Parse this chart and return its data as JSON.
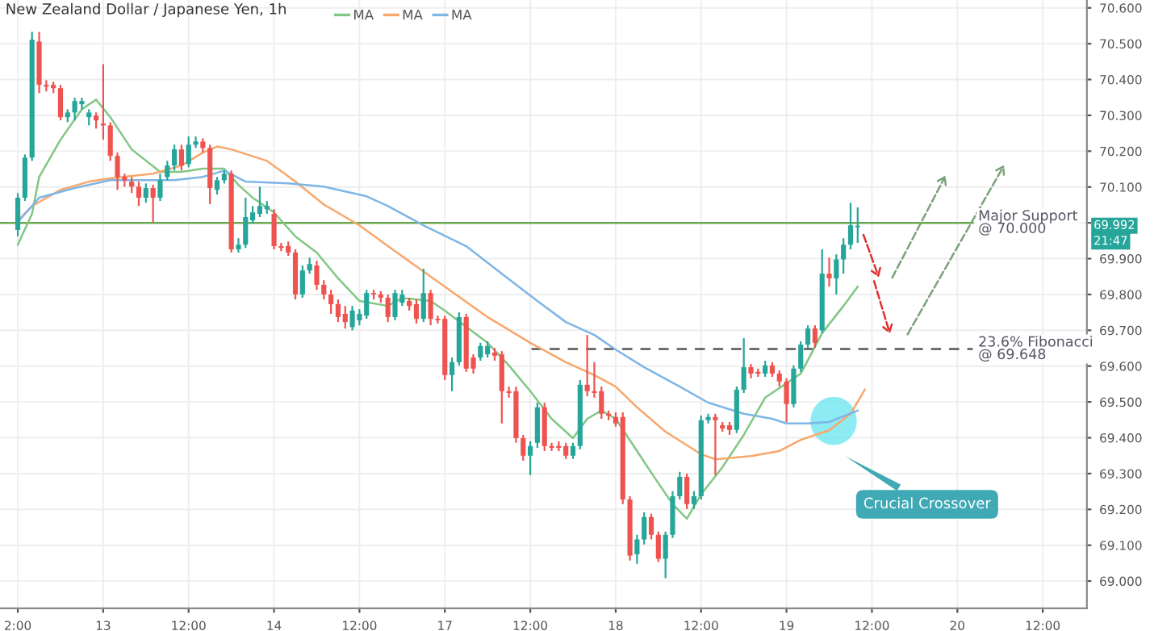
{
  "chart_data": {
    "type": "candlestick",
    "title": "New Zealand Dollar / Japanese Yen, 1h",
    "categories": [
      "2:00",
      null,
      null,
      null,
      null,
      null,
      null,
      null,
      null,
      null,
      null,
      null,
      "13",
      null,
      null,
      null,
      null,
      null,
      null,
      null,
      null,
      null,
      null,
      null,
      "12:00",
      null,
      null,
      null,
      null,
      null,
      null,
      null,
      null,
      null,
      null,
      null,
      "14",
      null,
      null,
      null,
      null,
      null,
      null,
      null,
      null,
      null,
      null,
      null,
      "12:00",
      null,
      null,
      null,
      null,
      null,
      null,
      null,
      null,
      null,
      null,
      null,
      "17",
      null,
      null,
      null,
      null,
      null,
      null,
      null,
      null,
      null,
      null,
      null,
      "12:00",
      null,
      null,
      null,
      null,
      null,
      null,
      null,
      null,
      null,
      null,
      null,
      "18",
      null,
      null,
      null,
      null,
      null,
      null,
      null,
      null,
      null,
      null,
      null,
      "12:00",
      null,
      null,
      null,
      null,
      null,
      null,
      null,
      null,
      null,
      null,
      null,
      "19",
      null,
      null,
      null,
      null,
      null,
      null,
      null,
      null,
      null,
      null,
      null,
      "12:00",
      null,
      null,
      null,
      null,
      null,
      null,
      null,
      null,
      null,
      null,
      null,
      "20",
      null,
      null,
      null,
      null,
      null,
      null,
      null,
      null,
      null,
      null,
      null,
      "12:00",
      null,
      null,
      null,
      null,
      null,
      null
    ],
    "ohlc": [
      [
        69.98,
        70.083,
        69.962,
        70.07
      ],
      [
        70.07,
        70.191,
        70.061,
        70.182
      ],
      [
        70.182,
        70.533,
        70.173,
        70.511
      ],
      [
        70.506,
        70.533,
        70.362,
        70.385
      ],
      [
        70.385,
        70.398,
        70.367,
        70.38
      ],
      [
        70.385,
        70.394,
        70.362,
        70.376
      ],
      [
        70.376,
        70.385,
        70.286,
        70.295
      ],
      [
        70.295,
        70.317,
        70.281,
        70.308
      ],
      [
        70.308,
        70.349,
        70.286,
        70.34
      ],
      [
        70.331,
        70.349,
        70.317,
        70.34
      ],
      [
        70.295,
        70.317,
        70.272,
        70.308
      ],
      [
        70.299,
        70.308,
        70.263,
        70.286
      ],
      [
        70.277,
        70.443,
        70.232,
        70.272
      ],
      [
        70.272,
        70.281,
        70.173,
        70.187
      ],
      [
        70.187,
        70.196,
        70.092,
        70.128
      ],
      [
        70.128,
        70.137,
        70.101,
        70.119
      ],
      [
        70.115,
        70.128,
        70.083,
        70.101
      ],
      [
        70.101,
        70.115,
        70.047,
        70.07
      ],
      [
        70.07,
        70.11,
        70.056,
        70.097
      ],
      [
        70.097,
        70.106,
        70.002,
        70.07
      ],
      [
        70.07,
        70.137,
        70.061,
        70.119
      ],
      [
        70.128,
        70.173,
        70.119,
        70.16
      ],
      [
        70.16,
        70.218,
        70.146,
        70.205
      ],
      [
        70.205,
        70.218,
        70.146,
        70.16
      ],
      [
        70.164,
        70.241,
        70.155,
        70.218
      ],
      [
        70.218,
        70.241,
        70.209,
        70.227
      ],
      [
        70.227,
        70.236,
        70.196,
        70.209
      ],
      [
        70.209,
        70.218,
        70.052,
        70.097
      ],
      [
        70.092,
        70.128,
        70.079,
        70.119
      ],
      [
        70.119,
        70.146,
        70.11,
        70.137
      ],
      [
        70.137,
        70.146,
        69.917,
        69.926
      ],
      [
        69.926,
        69.957,
        69.917,
        69.939
      ],
      [
        69.939,
        70.07,
        69.93,
        70.016
      ],
      [
        70.007,
        70.047,
        69.998,
        70.029
      ],
      [
        70.025,
        70.101,
        70.016,
        70.047
      ],
      [
        70.038,
        70.061,
        70.025,
        70.047
      ],
      [
        70.025,
        70.038,
        69.926,
        69.935
      ],
      [
        69.935,
        69.944,
        69.921,
        69.93
      ],
      [
        69.935,
        69.948,
        69.908,
        69.917
      ],
      [
        69.917,
        69.926,
        69.786,
        69.8
      ],
      [
        69.8,
        69.881,
        69.791,
        69.867
      ],
      [
        69.867,
        69.903,
        69.858,
        69.885
      ],
      [
        69.881,
        69.894,
        69.813,
        69.827
      ],
      [
        69.827,
        69.84,
        69.786,
        69.8
      ],
      [
        69.8,
        69.813,
        69.746,
        69.773
      ],
      [
        69.773,
        69.786,
        69.723,
        69.737
      ],
      [
        69.746,
        69.768,
        69.705,
        69.723
      ],
      [
        69.709,
        69.768,
        69.7,
        69.755
      ],
      [
        69.728,
        69.759,
        69.714,
        69.746
      ],
      [
        69.741,
        69.813,
        69.732,
        69.804
      ],
      [
        69.804,
        69.813,
        69.786,
        69.8
      ],
      [
        69.8,
        69.809,
        69.777,
        69.791
      ],
      [
        69.791,
        69.8,
        69.723,
        69.737
      ],
      [
        69.737,
        69.813,
        69.728,
        69.804
      ],
      [
        69.777,
        69.813,
        69.768,
        69.8
      ],
      [
        69.782,
        69.791,
        69.755,
        69.768
      ],
      [
        69.773,
        69.786,
        69.719,
        69.732
      ],
      [
        69.732,
        69.872,
        69.723,
        69.804
      ],
      [
        69.804,
        69.813,
        69.714,
        69.732
      ],
      [
        69.732,
        69.741,
        69.719,
        69.728
      ],
      [
        69.732,
        69.741,
        69.561,
        69.575
      ],
      [
        69.575,
        69.624,
        69.53,
        69.611
      ],
      [
        69.611,
        69.75,
        69.602,
        69.737
      ],
      [
        69.737,
        69.746,
        69.584,
        69.593
      ],
      [
        69.624,
        69.633,
        69.579,
        69.593
      ],
      [
        69.624,
        69.665,
        69.615,
        69.656
      ],
      [
        69.633,
        69.669,
        69.624,
        69.656
      ],
      [
        69.638,
        69.651,
        69.615,
        69.629
      ],
      [
        69.633,
        69.642,
        69.44,
        69.53
      ],
      [
        69.53,
        69.543,
        69.512,
        69.525
      ],
      [
        69.53,
        69.543,
        69.386,
        69.399
      ],
      [
        69.399,
        69.408,
        69.336,
        69.35
      ],
      [
        69.35,
        69.39,
        69.296,
        69.377
      ],
      [
        69.386,
        69.498,
        69.372,
        69.485
      ],
      [
        69.485,
        69.498,
        69.363,
        69.377
      ],
      [
        69.377,
        69.386,
        69.363,
        69.372
      ],
      [
        69.377,
        69.39,
        69.363,
        69.372
      ],
      [
        69.377,
        69.386,
        69.341,
        69.35
      ],
      [
        69.35,
        69.386,
        69.341,
        69.377
      ],
      [
        69.377,
        69.561,
        69.368,
        69.548
      ],
      [
        69.548,
        69.687,
        69.516,
        69.53
      ],
      [
        69.53,
        69.611,
        69.512,
        69.525
      ],
      [
        69.53,
        69.543,
        69.453,
        69.467
      ],
      [
        69.467,
        69.476,
        69.449,
        69.462
      ],
      [
        69.458,
        69.471,
        69.431,
        69.44
      ],
      [
        69.458,
        69.471,
        69.215,
        69.228
      ],
      [
        69.228,
        69.237,
        69.057,
        69.071
      ],
      [
        69.075,
        69.129,
        69.048,
        69.116
      ],
      [
        69.116,
        69.192,
        69.102,
        69.179
      ],
      [
        69.179,
        69.188,
        69.116,
        69.129
      ],
      [
        69.129,
        69.138,
        69.053,
        69.062
      ],
      [
        69.062,
        69.138,
        69.008,
        69.129
      ],
      [
        69.129,
        69.251,
        69.12,
        69.237
      ],
      [
        69.237,
        69.305,
        69.228,
        69.291
      ],
      [
        69.291,
        69.3,
        69.201,
        69.215
      ],
      [
        69.215,
        69.251,
        69.201,
        69.237
      ],
      [
        69.237,
        69.462,
        69.228,
        69.449
      ],
      [
        69.449,
        69.467,
        69.44,
        69.458
      ],
      [
        69.458,
        69.467,
        69.296,
        69.449
      ],
      [
        69.435,
        69.444,
        69.417,
        69.426
      ],
      [
        69.435,
        69.444,
        69.408,
        69.422
      ],
      [
        69.422,
        69.543,
        69.413,
        69.534
      ],
      [
        69.534,
        69.678,
        69.525,
        69.597
      ],
      [
        69.597,
        69.606,
        69.566,
        69.579
      ],
      [
        69.584,
        69.593,
        69.57,
        69.579
      ],
      [
        69.579,
        69.615,
        69.57,
        69.602
      ],
      [
        69.602,
        69.611,
        69.57,
        69.579
      ],
      [
        69.579,
        69.588,
        69.543,
        69.557
      ],
      [
        69.557,
        69.566,
        69.444,
        69.494
      ],
      [
        69.494,
        69.602,
        69.485,
        69.593
      ],
      [
        69.593,
        69.669,
        69.584,
        69.66
      ],
      [
        69.66,
        69.714,
        69.651,
        69.705
      ],
      [
        69.705,
        69.714,
        69.651,
        69.665
      ],
      [
        69.7,
        69.926,
        69.692,
        69.858
      ],
      [
        69.858,
        69.903,
        69.822,
        69.845
      ],
      [
        69.845,
        69.912,
        69.8,
        69.898
      ],
      [
        69.898,
        69.957,
        69.858,
        69.939
      ],
      [
        69.939,
        70.056,
        69.926,
        69.993
      ],
      [
        69.988,
        70.043,
        69.944,
        69.992
      ],
      null,
      null,
      null,
      null,
      null,
      null,
      null,
      null,
      null,
      null,
      null,
      null,
      null,
      null,
      null,
      null,
      null,
      null,
      null,
      null,
      null,
      null,
      null,
      null,
      null,
      null,
      null,
      null,
      null,
      null,
      null,
      null
    ],
    "series": [
      {
        "type": "line",
        "name": "MA",
        "color": "#81c784",
        "values": [
          69.939,
          null,
          70.025,
          70.128,
          null,
          null,
          70.232,
          null,
          null,
          70.317,
          null,
          70.344,
          null,
          70.295,
          null,
          null,
          70.205,
          null,
          null,
          null,
          70.142,
          null,
          null,
          70.142,
          null,
          null,
          70.151,
          null,
          null,
          70.151,
          null,
          70.106,
          null,
          70.07,
          null,
          null,
          70.029,
          null,
          null,
          69.962,
          null,
          null,
          69.917,
          null,
          null,
          69.845,
          null,
          null,
          69.782,
          null,
          null,
          null,
          69.768,
          null,
          69.79,
          null,
          null,
          null,
          69.782,
          null,
          69.755,
          null,
          null,
          69.71,
          null,
          null,
          69.665,
          null,
          null,
          69.602,
          null,
          null,
          69.53,
          null,
          null,
          69.453,
          null,
          null,
          69.399,
          null,
          69.453,
          null,
          69.476,
          null,
          69.453,
          null,
          null,
          69.363,
          null,
          null,
          69.273,
          null,
          69.215,
          null,
          69.174,
          null,
          69.242,
          null,
          null,
          69.318,
          null,
          null,
          69.408,
          null,
          null,
          69.512,
          null,
          null,
          69.552,
          null,
          69.579,
          null,
          null,
          69.692,
          null,
          null,
          69.768,
          null,
          69.822,
          null,
          null,
          null,
          null,
          null,
          null,
          null,
          null,
          null,
          null,
          null,
          null,
          null,
          null,
          null,
          null,
          null,
          null,
          null,
          null,
          null,
          null,
          null,
          null,
          null,
          null,
          null,
          null,
          null,
          null,
          null,
          null
        ]
      },
      {
        "type": "line",
        "name": "MA",
        "color": "#f7a76c",
        "values": [
          70.006,
          null,
          70.047,
          null,
          null,
          null,
          70.092,
          null,
          null,
          null,
          70.115,
          null,
          null,
          70.124,
          null,
          null,
          null,
          null,
          null,
          70.137,
          null,
          null,
          null,
          70.16,
          null,
          null,
          70.196,
          null,
          70.213,
          null,
          70.205,
          null,
          null,
          null,
          null,
          70.173,
          null,
          null,
          null,
          70.115,
          null,
          null,
          null,
          70.051,
          null,
          null,
          null,
          null,
          69.993,
          null,
          null,
          null,
          69.935,
          null,
          null,
          null,
          null,
          null,
          null,
          69.836,
          null,
          null,
          null,
          null,
          null,
          null,
          69.737,
          null,
          null,
          null,
          null,
          null,
          69.665,
          null,
          null,
          null,
          null,
          69.611,
          null,
          null,
          null,
          69.575,
          null,
          null,
          69.543,
          null,
          null,
          69.485,
          null,
          null,
          null,
          69.417,
          null,
          null,
          null,
          null,
          69.354,
          null,
          69.34,
          null,
          null,
          null,
          null,
          69.349,
          null,
          null,
          null,
          69.363,
          null,
          null,
          69.394,
          null,
          null,
          null,
          69.421,
          null,
          null,
          69.467,
          null,
          69.534,
          null,
          null,
          null,
          null,
          null,
          null,
          null,
          null,
          null,
          null,
          null,
          null,
          null,
          null,
          null,
          null,
          null,
          null,
          null,
          null,
          null,
          null,
          null,
          null,
          null,
          null,
          null,
          null,
          null,
          null,
          null
        ]
      },
      {
        "type": "line",
        "name": "MA",
        "color": "#7eb6e6",
        "values": [
          70.002,
          null,
          null,
          70.07,
          null,
          null,
          null,
          null,
          70.097,
          null,
          null,
          null,
          null,
          70.119,
          null,
          null,
          null,
          null,
          70.119,
          null,
          null,
          null,
          70.119,
          null,
          null,
          null,
          70.128,
          null,
          null,
          70.146,
          null,
          null,
          70.115,
          null,
          null,
          null,
          null,
          null,
          70.11,
          null,
          null,
          null,
          null,
          70.101,
          null,
          null,
          null,
          null,
          null,
          70.074,
          null,
          null,
          70.047,
          null,
          null,
          null,
          null,
          69.993,
          null,
          null,
          null,
          null,
          null,
          69.935,
          null,
          null,
          null,
          null,
          69.858,
          null,
          null,
          null,
          null,
          69.782,
          null,
          null,
          null,
          69.723,
          null,
          null,
          null,
          69.687,
          null,
          null,
          69.646,
          null,
          null,
          null,
          69.597,
          null,
          null,
          null,
          null,
          69.543,
          null,
          null,
          null,
          69.498,
          null,
          null,
          null,
          null,
          69.467,
          null,
          null,
          null,
          69.453,
          null,
          69.44,
          null,
          null,
          69.44,
          null,
          null,
          69.444,
          null,
          null,
          null,
          69.476,
          null,
          null,
          null,
          null,
          null,
          null,
          null,
          null,
          null,
          null,
          null,
          null,
          null,
          null,
          null,
          null,
          null,
          null,
          null,
          null,
          null,
          null,
          null,
          null,
          null,
          null,
          null,
          null,
          null,
          null,
          null,
          null
        ]
      }
    ],
    "ylim": [
      68.924,
      70.622
    ],
    "yticks": [
      {
        "value": 69.0,
        "label": "69.000"
      },
      {
        "value": 69.1,
        "label": "69.100"
      },
      {
        "value": 69.2,
        "label": "69.200"
      },
      {
        "value": 69.3,
        "label": "69.300"
      },
      {
        "value": 69.4,
        "label": "69.400"
      },
      {
        "value": 69.5,
        "label": "69.500"
      },
      {
        "value": 69.6,
        "label": "69.600"
      },
      {
        "value": 69.7,
        "label": "69.700"
      },
      {
        "value": 69.8,
        "label": "69.800"
      },
      {
        "value": 69.9,
        "label": "69.900"
      },
      {
        "value": 70.0,
        "label": null
      },
      {
        "value": 70.1,
        "label": "70.100"
      },
      {
        "value": 70.2,
        "label": "70.200"
      },
      {
        "value": 70.3,
        "label": "70.300"
      },
      {
        "value": 70.4,
        "label": "70.400"
      },
      {
        "value": 70.5,
        "label": "70.500"
      },
      {
        "value": 70.6,
        "label": "70.600"
      }
    ],
    "ref_lines": [
      {
        "axis": "y",
        "value": 70.0,
        "label": "Major Support\n@ 70.000",
        "color": "#6aa84f",
        "line_style": "solid"
      },
      {
        "axis": "y",
        "value": 69.648,
        "label": "23.6% Fibonacci\n@ 69.648",
        "color": "#555555",
        "line_style": "dashed"
      }
    ],
    "annotations": [
      "Crucial Crossover",
      "69.992",
      "21:47"
    ],
    "grid": true,
    "legend": "top left"
  }
}
